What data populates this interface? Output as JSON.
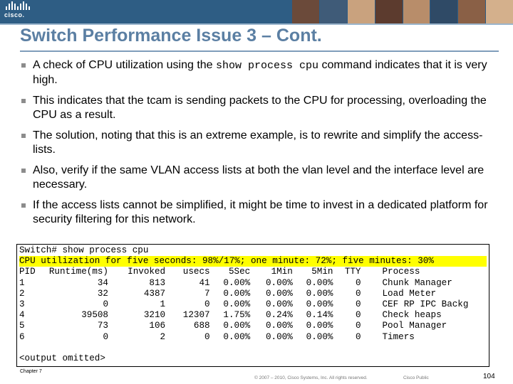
{
  "header": {
    "logo_text": "cisco.",
    "photo_colors": [
      "#6b4a3a",
      "#3f5b78",
      "#c9a27e",
      "#5c3b2e",
      "#b88d6a",
      "#2f4a66",
      "#8a6046",
      "#d4b08c"
    ]
  },
  "title": "Switch Performance Issue 3 – Cont.",
  "bullets": [
    {
      "pre": "A check of CPU utilization using the ",
      "code": "show process cpu",
      "post": " command indicates that it is very high."
    },
    {
      "pre": "This indicates that the tcam is sending packets to the CPU for processing, overloading the CPU as a result.",
      "code": "",
      "post": ""
    },
    {
      "pre": "The solution, noting that this is an extreme example, is to rewrite and simplify the access-lists.",
      "code": "",
      "post": ""
    },
    {
      "pre": "Also, verify if the same VLAN access lists at both the vlan level and the interface level are necessary.",
      "code": "",
      "post": ""
    },
    {
      "pre": "If the access lists cannot be simplified, it might be time to invest in a dedicated platform for security filtering for this network.",
      "code": "",
      "post": ""
    }
  ],
  "terminal": {
    "command_line": "Switch# show process cpu",
    "utilization_line": "CPU utilization for five seconds: 98%/17%; one minute: 72%; five minutes: 30%",
    "headers": {
      "pid": "PID",
      "runtime": "Runtime(ms)",
      "invoked": "Invoked",
      "usecs": "usecs",
      "sec5": "5Sec",
      "min1": "1Min",
      "min5": "5Min",
      "tty": "TTY",
      "process": "Process"
    },
    "rows": [
      {
        "pid": "1",
        "runtime": "34",
        "invoked": "813",
        "usecs": "41",
        "sec5": "0.00%",
        "min1": "0.00%",
        "min5": "0.00%",
        "tty": "0",
        "process": "Chunk Manager"
      },
      {
        "pid": "2",
        "runtime": "32",
        "invoked": "4387",
        "usecs": "7",
        "sec5": "0.00%",
        "min1": "0.00%",
        "min5": "0.00%",
        "tty": "0",
        "process": "Load Meter"
      },
      {
        "pid": "3",
        "runtime": "0",
        "invoked": "1",
        "usecs": "0",
        "sec5": "0.00%",
        "min1": "0.00%",
        "min5": "0.00%",
        "tty": "0",
        "process": "CEF RP IPC Backg"
      },
      {
        "pid": "4",
        "runtime": "39508",
        "invoked": "3210",
        "usecs": "12307",
        "sec5": "1.75%",
        "min1": "0.24%",
        "min5": "0.14%",
        "tty": "0",
        "process": "Check heaps"
      },
      {
        "pid": "5",
        "runtime": "73",
        "invoked": "106",
        "usecs": "688",
        "sec5": "0.00%",
        "min1": "0.00%",
        "min5": "0.00%",
        "tty": "0",
        "process": "Pool Manager"
      },
      {
        "pid": "6",
        "runtime": "0",
        "invoked": "2",
        "usecs": "0",
        "sec5": "0.00%",
        "min1": "0.00%",
        "min5": "0.00%",
        "tty": "0",
        "process": "Timers"
      }
    ],
    "footer_line": "<output omitted>"
  },
  "footer": {
    "chapter": "Chapter 7",
    "copyright": "© 2007 – 2010, Cisco Systems, Inc. All rights reserved.",
    "classification": "Cisco Public",
    "page_number": "104"
  }
}
